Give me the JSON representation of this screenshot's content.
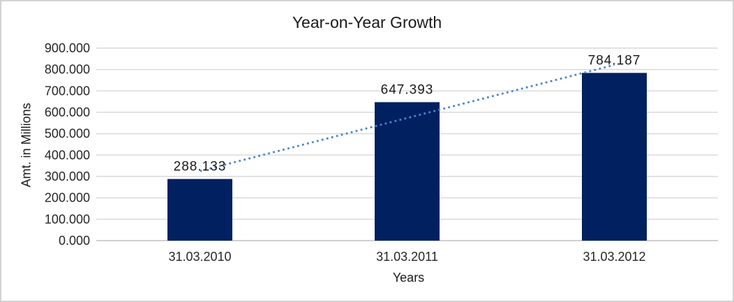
{
  "window": {
    "background": "#ffffff",
    "border_color": "#d3d3d3"
  },
  "chart_data": {
    "type": "bar",
    "title": "Year-on-Year Growth",
    "xlabel": "Years",
    "ylabel": "Amt. in Millions",
    "categories": [
      "31.03.2010",
      "31.03.2011",
      "31.03.2012"
    ],
    "values": [
      288133,
      647393,
      784187
    ],
    "data_labels": [
      "288.133",
      "647.393",
      "784.187"
    ],
    "ylim": [
      0,
      900000
    ],
    "y_tick_values": [
      0,
      100000,
      200000,
      300000,
      400000,
      500000,
      600000,
      700000,
      800000,
      900000
    ],
    "y_tick_labels": [
      "0.000",
      "100.000",
      "200.000",
      "300.000",
      "400.000",
      "500.000",
      "600.000",
      "700.000",
      "800.000",
      "900.000"
    ],
    "grid": true,
    "legend": "none",
    "bar_color": "#002060",
    "gridline_color": "#d9d9d9",
    "axis_line_color": "#c0c0c0",
    "text_color": "#262626",
    "trendline": {
      "type": "linear",
      "style": "dotted",
      "color": "#4a86c8"
    }
  }
}
